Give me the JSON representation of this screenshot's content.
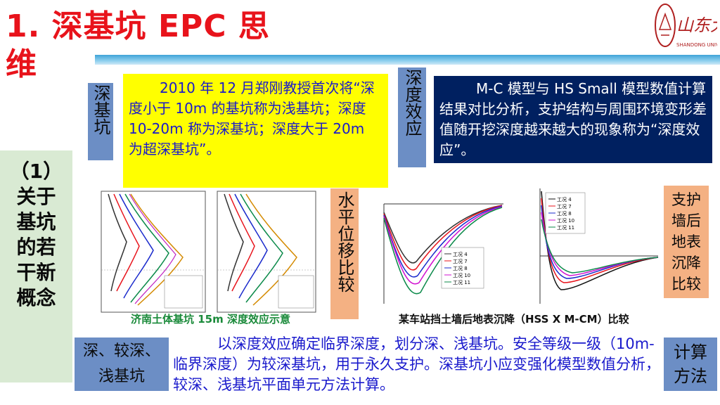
{
  "title": {
    "line1": "1. 深基坑 EPC 思",
    "line2": "维"
  },
  "logo": {
    "text": "山东大学",
    "subtext": "SHANDONG UNIVE"
  },
  "labels": {
    "deep_pit": "深基坑",
    "depth_effect": "深度效应",
    "horizontal_disp": "水平位移比较",
    "settlement": "支护墙后地表沉降比较",
    "shallow": "深、较深、浅基坑",
    "calc": "计算方法"
  },
  "side_box": "（1）关于基坑的若干新概念",
  "yellow_text": "2010 年 12 月郑刚教授首次将“深度小于 10m 的基坑称为浅基坑；深度 10-20m 称为深基坑；深度大于 20m 为超深基坑”。",
  "navy_text": "M-C 模型与 HS Small 模型数值计算结果对比分析，支护结构与周围环境变形差值随开挖深度越来越大的现象称为“深度效应”。",
  "bottom_text": "以深度效应确定临界深度，划分深、浅基坑。安全等级一级（10m-临界深度）为较深基坑，用于永久支护。深基坑小应变强化模型数值分析，较深、浅基坑平面单元方法计算。",
  "captions": {
    "left": "济南土体基坑 15m 深度效应示意",
    "right": "某车站挡土墙后地表沉降（HSS X M-CM）比较"
  },
  "chart_legends": {
    "settle_mid": [
      "工况 4",
      "工况 7",
      "工况 8",
      "工况 10",
      "工况 11"
    ],
    "settle_right": [
      "工况 4",
      "工况 7",
      "工况 8",
      "工况 10",
      "工况 11"
    ]
  },
  "colors": {
    "red": "#e8131b",
    "blue_text": "#1a1acc",
    "navy": "#002060",
    "yellow": "#ffff00",
    "steel": "#6c8ec5",
    "orange": "#f4b183"
  }
}
